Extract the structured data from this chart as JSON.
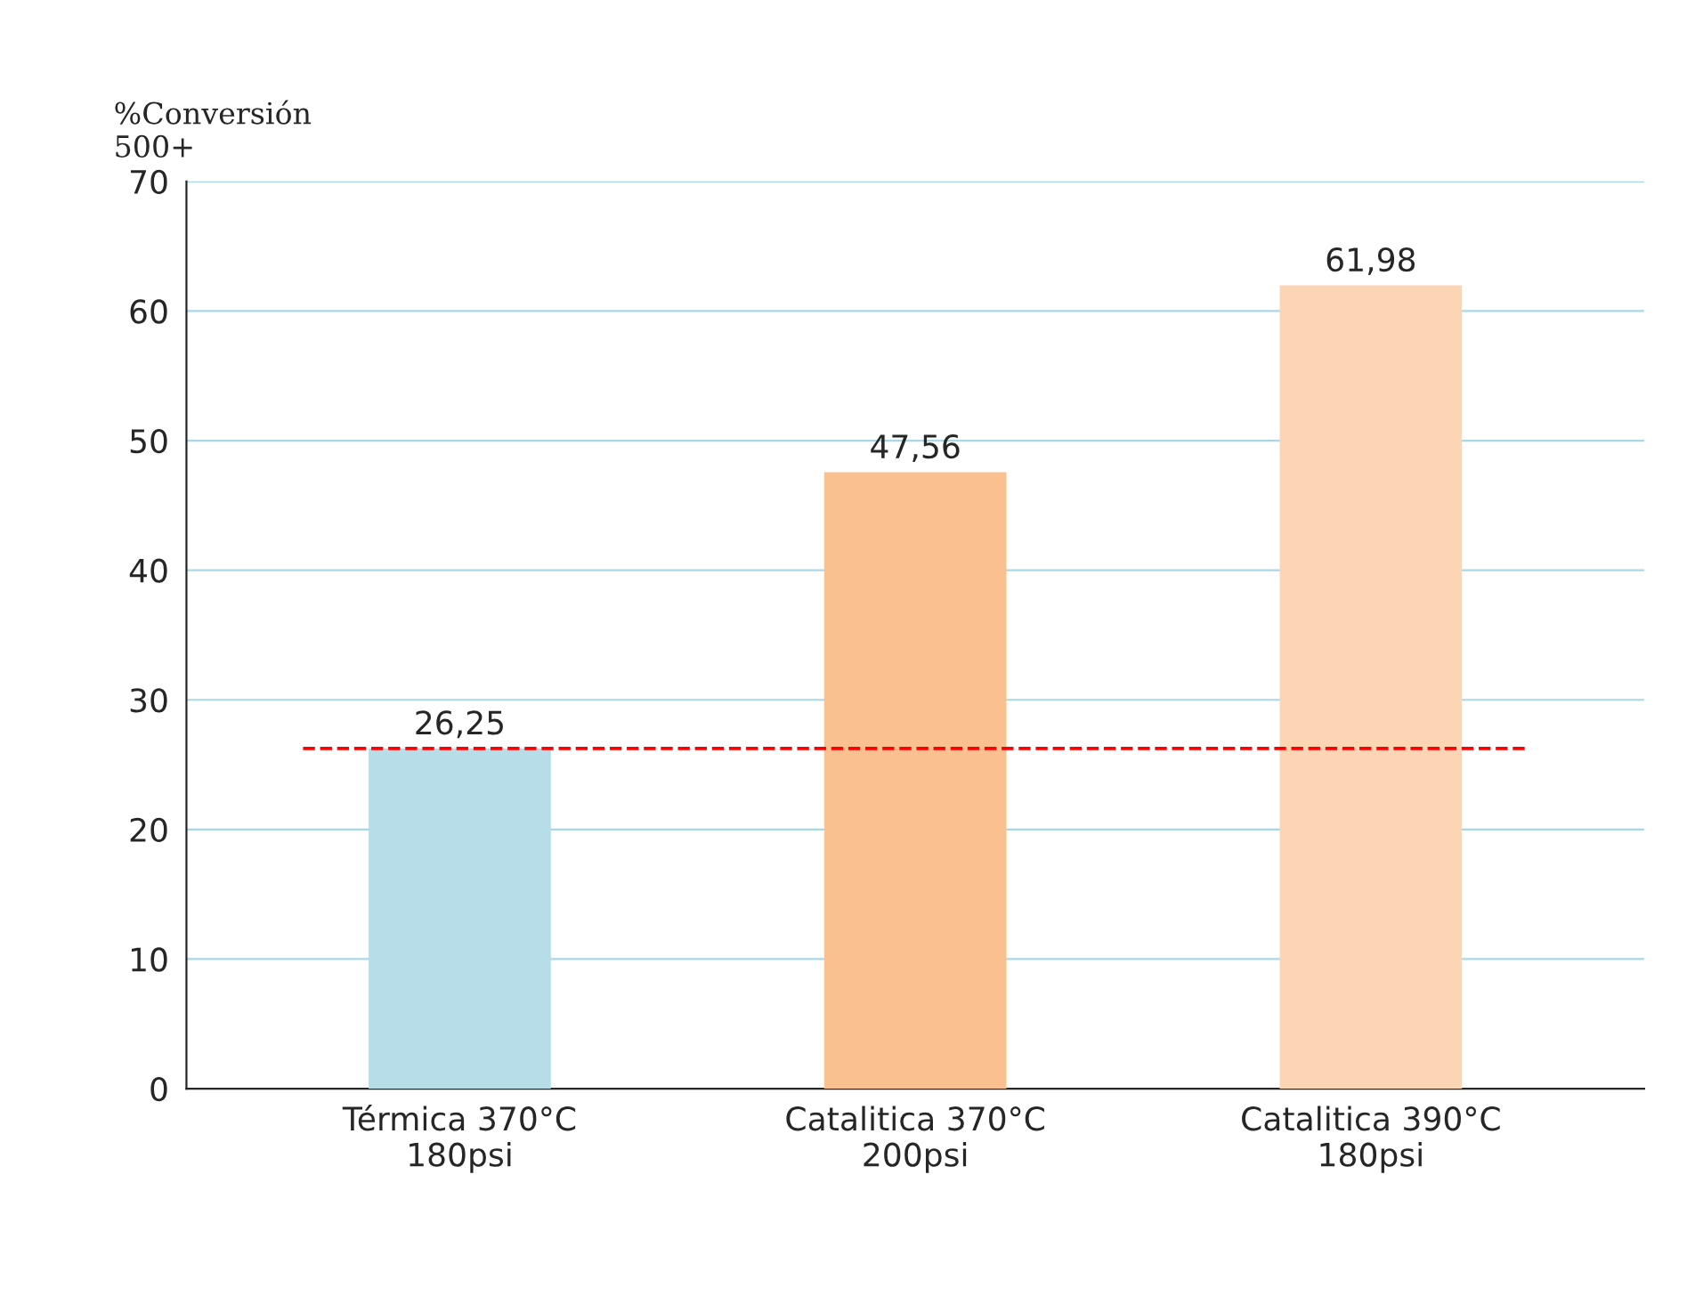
{
  "chart_data": {
    "type": "bar",
    "ylabel": "%Conversión\n500+",
    "categories": [
      "Térmica 370°C\n180psi",
      "Catalitica 370°C\n200psi",
      "Catalitica 390°C\n180psi"
    ],
    "values": [
      26.25,
      47.56,
      61.98
    ],
    "colors": [
      "#b7dde8",
      "#fac090",
      "#fcd5b5"
    ],
    "value_labels": [
      "26,25",
      "47,56",
      "61,98"
    ],
    "ylim": [
      0,
      70
    ],
    "yticks": [
      0,
      10,
      20,
      30,
      40,
      50,
      60,
      70
    ],
    "grid": "y",
    "ref_lines": [
      {
        "axis": "y",
        "value": 26.25,
        "color": "#ff0000",
        "line_style": "dashed"
      }
    ]
  }
}
